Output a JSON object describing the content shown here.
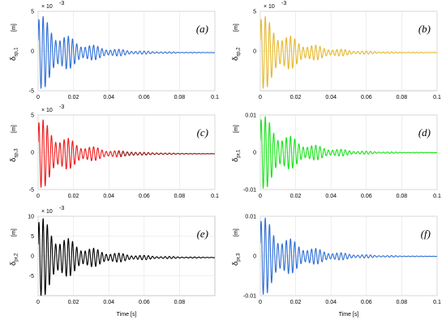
{
  "figure": {
    "xlabel": "Time [s]"
  },
  "chart_data": [
    {
      "type": "line",
      "panel": "(a)",
      "ylabel": "δ",
      "ylabel_sub": "sp,1",
      "unit": "[m]",
      "multiplier": "× 10",
      "exponent": "-3",
      "color": "#2f6fd6",
      "xlim": [
        0,
        0.1
      ],
      "ylim": [
        -5,
        5
      ],
      "xticks": [
        "0",
        "0.02",
        "0.04",
        "0.06",
        "0.08",
        "0.1"
      ],
      "yticks": [
        "-5",
        "0",
        "5"
      ],
      "ytick_values": [
        -5,
        0,
        5
      ],
      "grid": true,
      "signal": {
        "amplitude": 4.0,
        "decay": 55,
        "frequency": 420,
        "offset": -0.2
      }
    },
    {
      "type": "line",
      "panel": "(b)",
      "ylabel": "δ",
      "ylabel_sub": "sp,2",
      "unit": "[m]",
      "multiplier": "× 10",
      "exponent": "-3",
      "color": "#e6b82e",
      "xlim": [
        0,
        0.1
      ],
      "ylim": [
        -5,
        5
      ],
      "xticks": [
        "0",
        "0.02",
        "0.04",
        "0.06",
        "0.08",
        "0.1"
      ],
      "yticks": [
        "0",
        "5"
      ],
      "ytick_values": [
        0,
        5
      ],
      "grid": true,
      "signal": {
        "amplitude": 4.0,
        "decay": 55,
        "frequency": 420,
        "offset": -0.2
      }
    },
    {
      "type": "line",
      "panel": "(c)",
      "ylabel": "δ",
      "ylabel_sub": "sp,3",
      "unit": "[m]",
      "multiplier": "× 10",
      "exponent": "-3",
      "color": "#ee1c1c",
      "color_tail": "#8a2a1e",
      "xlim": [
        0,
        0.1
      ],
      "ylim": [
        -5,
        5
      ],
      "xticks": [
        "0",
        "0.02",
        "0.04",
        "0.06",
        "0.08",
        "0.1"
      ],
      "yticks": [
        "-5",
        "0",
        "5"
      ],
      "ytick_values": [
        -5,
        0,
        5
      ],
      "grid": true,
      "signal": {
        "amplitude": 4.0,
        "decay": 55,
        "frequency": 420,
        "offset": -0.2
      }
    },
    {
      "type": "line",
      "panel": "(d)",
      "ylabel": "δ",
      "ylabel_sub": "pr,1",
      "unit": "[m]",
      "color": "#18e418",
      "xlim": [
        0,
        0.1
      ],
      "ylim": [
        -0.01,
        0.01
      ],
      "xticks": [
        "0",
        "0.02",
        "0.04",
        "0.06",
        "0.08",
        "0.1"
      ],
      "yticks": [
        "-0.01",
        "0",
        "0.01"
      ],
      "ytick_values": [
        -0.01,
        0,
        0.01
      ],
      "grid": true,
      "signal": {
        "amplitude": 0.0085,
        "decay": 55,
        "frequency": 420,
        "offset": -0.0001
      }
    },
    {
      "type": "line",
      "panel": "(e)",
      "ylabel": "δ",
      "ylabel_sub": "pr,2",
      "unit": "[m]",
      "multiplier": "× 10",
      "exponent": "-3",
      "color": "#000000",
      "xlim": [
        0,
        0.1
      ],
      "ylim": [
        -10,
        10
      ],
      "xticks": [
        "0",
        "0.02",
        "0.04",
        "0.06",
        "0.08"
      ],
      "xtick_values": [
        0,
        0.02,
        0.04,
        0.06,
        0.08
      ],
      "yticks": [
        "-5",
        "0",
        "5",
        "10"
      ],
      "ytick_values": [
        -5,
        0,
        5,
        10
      ],
      "grid": true,
      "signal": {
        "amplitude": 8.5,
        "decay": 50,
        "frequency": 420,
        "offset": -0.4
      }
    },
    {
      "type": "line",
      "panel": "(f)",
      "ylabel": "δ",
      "ylabel_sub": "pr,3",
      "unit": "[m]",
      "color": "#2f6fd6",
      "xlim": [
        0,
        0.1
      ],
      "ylim": [
        -0.01,
        0.01
      ],
      "xticks": [
        "0",
        "0.02",
        "0.04",
        "0.06",
        "0.08",
        "0.1"
      ],
      "yticks": [
        "-0.01",
        "0",
        "0.01"
      ],
      "ytick_values": [
        -0.01,
        0,
        0.01
      ],
      "grid": true,
      "signal": {
        "amplitude": 0.0085,
        "decay": 55,
        "frequency": 420,
        "offset": -0.0001
      }
    }
  ]
}
